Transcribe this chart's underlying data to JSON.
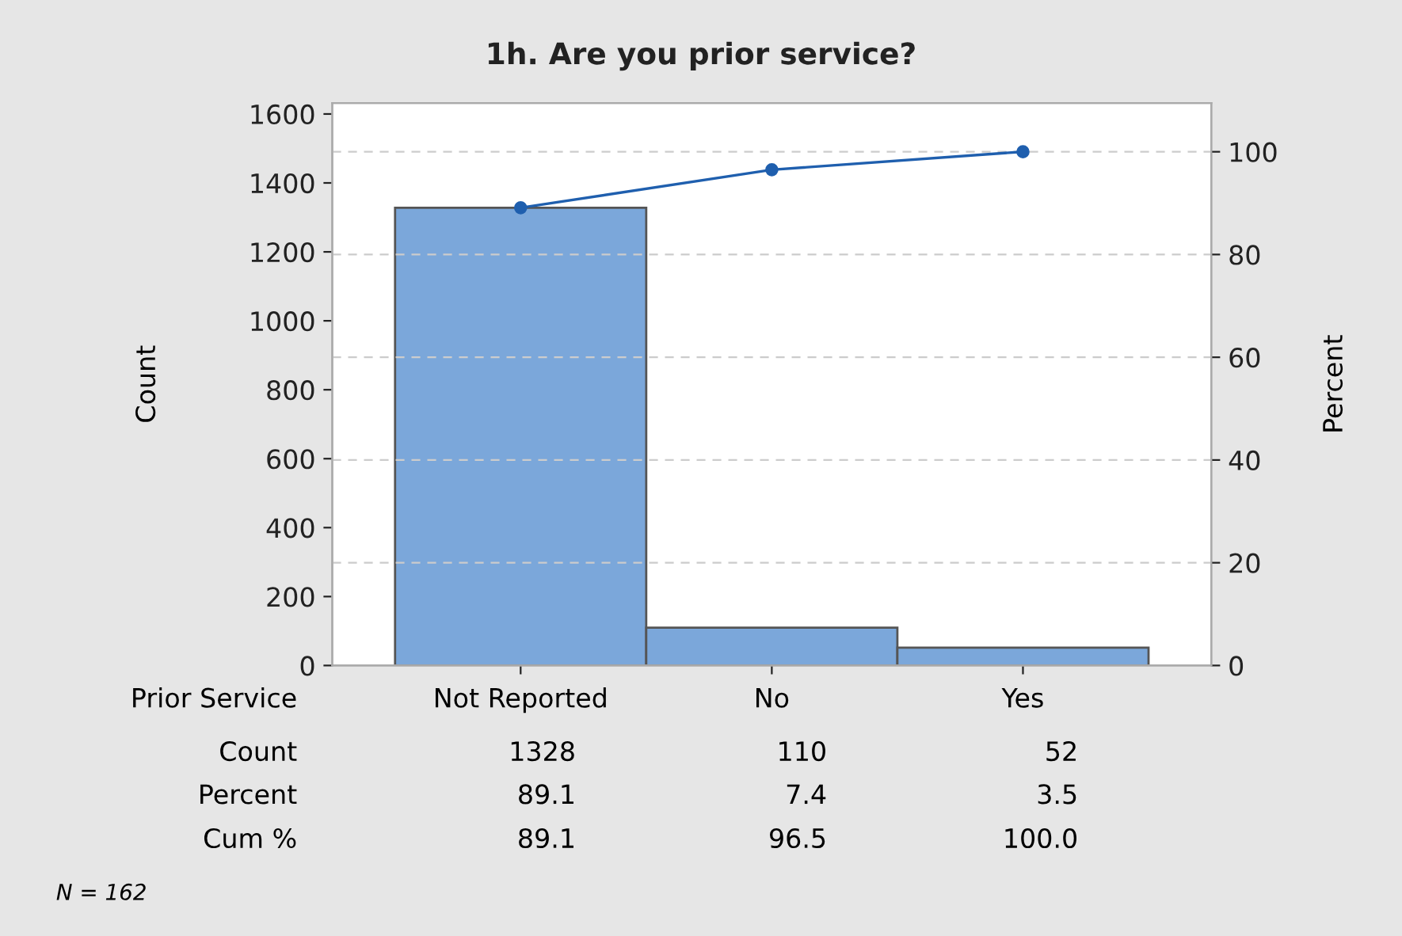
{
  "chart_data": {
    "type": "bar",
    "title": "1h. Are you prior service?",
    "xlabel": "Prior Service",
    "ylabel": "Count",
    "y2label": "Percent",
    "categories": [
      "Not Reported",
      "No",
      "Yes"
    ],
    "series": [
      {
        "color": "#7ba7da",
        "values": [
          1328,
          110,
          52
        ]
      },
      {
        "type": "line",
        "axis": "y2",
        "color": "#1f5fae",
        "values": [
          89.1,
          96.5,
          100.0
        ]
      }
    ],
    "ylim": [
      0,
      1632
    ],
    "yticks": [
      0,
      200,
      400,
      600,
      800,
      1000,
      1200,
      1400,
      1600
    ],
    "y2lim": [
      0,
      109.5
    ],
    "y2ticks": [
      0,
      20,
      40,
      60,
      80,
      100
    ],
    "grid": "y2",
    "marker": "circle",
    "line_style": "solid",
    "annotations": [
      "Count",
      "1328",
      "110",
      "52",
      "Percent",
      "89.1",
      "7.4",
      "3.5",
      "Cum %",
      "89.1",
      "96.5",
      "100.0",
      "N = 162"
    ]
  }
}
